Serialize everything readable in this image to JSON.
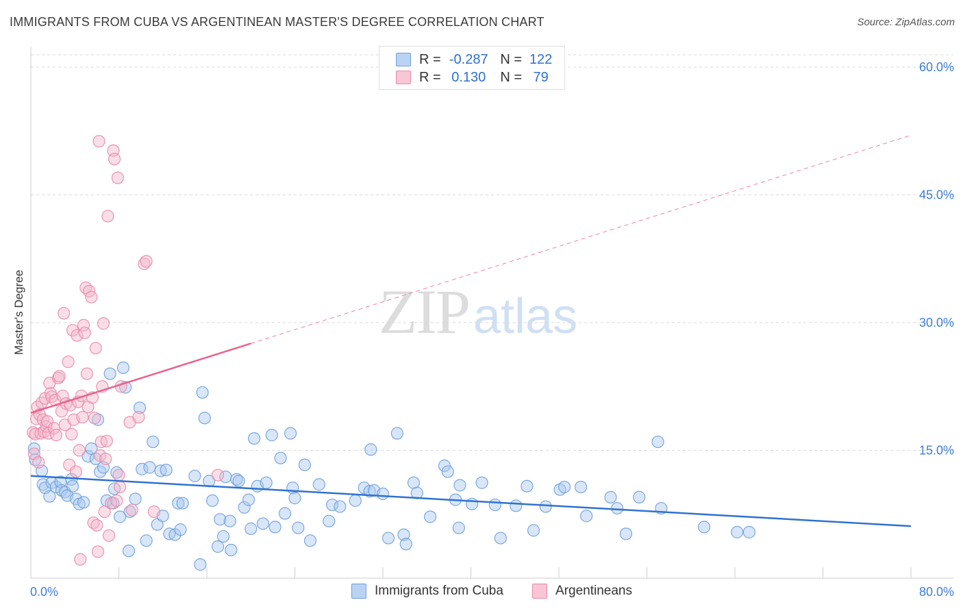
{
  "title": "IMMIGRANTS FROM CUBA VS ARGENTINEAN MASTER'S DEGREE CORRELATION CHART",
  "source": "Source: ZipAtlas.com",
  "watermark": {
    "part1": "ZIP",
    "part2": "atlas"
  },
  "legend": {
    "rows": [
      {
        "r_label": "R =",
        "r_value": "-0.287",
        "n_label": "N =",
        "n_value": "122"
      },
      {
        "r_label": "R =",
        "r_value": "0.130",
        "n_label": "N =",
        "n_value": "79"
      }
    ]
  },
  "colors": {
    "blue_fill": "#a9c8ef",
    "blue_stroke": "#6d9edc",
    "blue_line": "#2f72cf",
    "pink_fill": "#f5b6c9",
    "pink_stroke": "#e88aa8",
    "pink_line": "#e8628c",
    "axis_label": "#3d7dd6",
    "grid": "#d9d9d9"
  },
  "chart_data": {
    "type": "scatter",
    "title": "IMMIGRANTS FROM CUBA VS ARGENTINEAN MASTER'S DEGREE CORRELATION CHART",
    "xlabel": "",
    "ylabel": "Master's Degree",
    "xlim": [
      0,
      80
    ],
    "ylim": [
      0,
      62
    ],
    "x_tick_labels": [
      "0.0%",
      "80.0%"
    ],
    "y_ticks": [
      15,
      30,
      45,
      60
    ],
    "y_tick_labels": [
      "15.0%",
      "30.0%",
      "45.0%",
      "60.0%"
    ],
    "grid": "horizontal dashed",
    "legend_position": "bottom",
    "series": [
      {
        "name": "Immigrants from Cuba",
        "color": "#6d9edc",
        "r": -0.287,
        "n": 122,
        "trend": {
          "x": [
            0,
            80
          ],
          "y": [
            12.0,
            6.1
          ],
          "dashed_from_x": null
        },
        "points": [
          [
            0.3,
            15.2
          ],
          [
            0.4,
            13.9
          ],
          [
            1.0,
            12.6
          ],
          [
            1.1,
            11.0
          ],
          [
            1.3,
            10.6
          ],
          [
            1.7,
            9.6
          ],
          [
            1.9,
            11.2
          ],
          [
            2.3,
            10.7
          ],
          [
            2.7,
            11.3
          ],
          [
            2.8,
            10.3
          ],
          [
            3.1,
            10.1
          ],
          [
            3.3,
            9.7
          ],
          [
            3.7,
            11.6
          ],
          [
            3.8,
            10.8
          ],
          [
            4.1,
            9.3
          ],
          [
            4.4,
            8.7
          ],
          [
            4.8,
            8.9
          ],
          [
            5.2,
            14.3
          ],
          [
            5.5,
            15.2
          ],
          [
            5.9,
            14.0
          ],
          [
            6.1,
            18.6
          ],
          [
            6.3,
            12.5
          ],
          [
            6.6,
            13.0
          ],
          [
            6.9,
            9.1
          ],
          [
            7.2,
            24.0
          ],
          [
            7.5,
            8.8
          ],
          [
            7.6,
            10.5
          ],
          [
            7.8,
            12.4
          ],
          [
            8.1,
            7.2
          ],
          [
            8.4,
            24.7
          ],
          [
            8.6,
            22.4
          ],
          [
            8.9,
            3.2
          ],
          [
            9.0,
            7.8
          ],
          [
            9.5,
            9.3
          ],
          [
            9.9,
            20.0
          ],
          [
            10.1,
            12.8
          ],
          [
            10.5,
            4.4
          ],
          [
            10.8,
            13.0
          ],
          [
            11.1,
            16.0
          ],
          [
            11.5,
            6.3
          ],
          [
            11.8,
            12.6
          ],
          [
            12.0,
            7.3
          ],
          [
            12.3,
            12.7
          ],
          [
            12.6,
            5.2
          ],
          [
            13.1,
            5.1
          ],
          [
            13.4,
            8.8
          ],
          [
            13.6,
            5.7
          ],
          [
            13.8,
            8.8
          ],
          [
            14.9,
            12.0
          ],
          [
            15.4,
            1.6
          ],
          [
            15.6,
            21.8
          ],
          [
            15.8,
            18.8
          ],
          [
            16.2,
            11.4
          ],
          [
            16.5,
            9.1
          ],
          [
            17.0,
            3.7
          ],
          [
            17.2,
            6.9
          ],
          [
            17.5,
            4.9
          ],
          [
            17.7,
            11.9
          ],
          [
            18.1,
            6.7
          ],
          [
            18.2,
            3.3
          ],
          [
            18.7,
            11.6
          ],
          [
            18.9,
            11.4
          ],
          [
            19.4,
            8.3
          ],
          [
            19.8,
            9.2
          ],
          [
            20.0,
            5.8
          ],
          [
            20.3,
            16.4
          ],
          [
            20.6,
            10.8
          ],
          [
            21.1,
            6.4
          ],
          [
            21.4,
            11.2
          ],
          [
            21.9,
            16.8
          ],
          [
            22.2,
            6.0
          ],
          [
            22.7,
            14.1
          ],
          [
            23.1,
            7.6
          ],
          [
            23.6,
            17.0
          ],
          [
            23.8,
            10.6
          ],
          [
            24.0,
            9.4
          ],
          [
            24.3,
            5.9
          ],
          [
            24.9,
            13.3
          ],
          [
            25.4,
            4.4
          ],
          [
            26.2,
            11.0
          ],
          [
            27.1,
            6.7
          ],
          [
            27.4,
            8.6
          ],
          [
            28.1,
            8.4
          ],
          [
            29.5,
            9.1
          ],
          [
            30.3,
            10.6
          ],
          [
            30.8,
            10.2
          ],
          [
            30.9,
            15.1
          ],
          [
            31.2,
            10.3
          ],
          [
            32.0,
            9.9
          ],
          [
            32.5,
            4.7
          ],
          [
            33.3,
            17.0
          ],
          [
            33.9,
            5.1
          ],
          [
            34.1,
            4.0
          ],
          [
            34.8,
            11.2
          ],
          [
            35.1,
            10.0
          ],
          [
            36.3,
            7.2
          ],
          [
            37.6,
            13.2
          ],
          [
            37.9,
            12.5
          ],
          [
            38.6,
            9.2
          ],
          [
            38.9,
            5.9
          ],
          [
            39.0,
            10.9
          ],
          [
            40.1,
            8.7
          ],
          [
            41.0,
            11.2
          ],
          [
            42.2,
            8.6
          ],
          [
            42.7,
            4.7
          ],
          [
            44.1,
            8.5
          ],
          [
            45.1,
            10.8
          ],
          [
            45.7,
            5.6
          ],
          [
            46.8,
            8.4
          ],
          [
            48.1,
            10.4
          ],
          [
            48.5,
            10.7
          ],
          [
            50.0,
            10.7
          ],
          [
            50.5,
            7.3
          ],
          [
            52.7,
            9.5
          ],
          [
            53.3,
            8.2
          ],
          [
            54.1,
            5.2
          ],
          [
            55.3,
            9.5
          ],
          [
            57.0,
            16.0
          ],
          [
            57.3,
            8.2
          ],
          [
            61.2,
            6.0
          ],
          [
            64.2,
            5.4
          ],
          [
            65.3,
            5.4
          ]
        ]
      },
      {
        "name": "Argentineans",
        "color": "#e88aa8",
        "r": 0.13,
        "n": 79,
        "trend": {
          "x": [
            0,
            80
          ],
          "y": [
            19.4,
            52.0
          ],
          "dashed_from_x": 20
        },
        "points": [
          [
            0.2,
            17.1
          ],
          [
            0.3,
            14.6
          ],
          [
            0.4,
            16.9
          ],
          [
            0.5,
            18.7
          ],
          [
            0.6,
            20.1
          ],
          [
            0.7,
            13.6
          ],
          [
            0.8,
            19.2
          ],
          [
            0.9,
            17.0
          ],
          [
            1.0,
            20.6
          ],
          [
            1.1,
            18.6
          ],
          [
            1.2,
            17.2
          ],
          [
            1.3,
            21.1
          ],
          [
            1.4,
            17.8
          ],
          [
            1.5,
            18.4
          ],
          [
            1.6,
            17.0
          ],
          [
            1.7,
            22.9
          ],
          [
            1.8,
            21.7
          ],
          [
            1.9,
            21.3
          ],
          [
            2.1,
            17.6
          ],
          [
            2.2,
            20.9
          ],
          [
            2.3,
            16.8
          ],
          [
            2.5,
            23.5
          ],
          [
            2.6,
            23.7
          ],
          [
            2.8,
            19.6
          ],
          [
            2.9,
            21.4
          ],
          [
            3.0,
            31.1
          ],
          [
            3.1,
            18.0
          ],
          [
            3.2,
            20.5
          ],
          [
            3.4,
            25.4
          ],
          [
            3.5,
            13.3
          ],
          [
            3.6,
            20.3
          ],
          [
            3.7,
            16.9
          ],
          [
            3.8,
            29.1
          ],
          [
            3.9,
            18.6
          ],
          [
            4.1,
            12.5
          ],
          [
            4.2,
            28.5
          ],
          [
            4.3,
            20.7
          ],
          [
            4.4,
            15.0
          ],
          [
            4.5,
            2.2
          ],
          [
            4.6,
            21.4
          ],
          [
            4.7,
            18.9
          ],
          [
            4.8,
            29.7
          ],
          [
            4.9,
            28.8
          ],
          [
            5.0,
            34.1
          ],
          [
            5.1,
            24.0
          ],
          [
            5.2,
            20.1
          ],
          [
            5.3,
            33.7
          ],
          [
            5.5,
            33.0
          ],
          [
            5.6,
            21.2
          ],
          [
            5.7,
            6.5
          ],
          [
            5.8,
            18.8
          ],
          [
            5.9,
            27.0
          ],
          [
            6.0,
            6.2
          ],
          [
            6.1,
            3.1
          ],
          [
            6.2,
            51.3
          ],
          [
            6.3,
            14.4
          ],
          [
            6.4,
            16.0
          ],
          [
            6.5,
            22.5
          ],
          [
            6.6,
            29.9
          ],
          [
            6.7,
            7.8
          ],
          [
            6.8,
            14.0
          ],
          [
            6.9,
            16.1
          ],
          [
            7.0,
            42.5
          ],
          [
            7.1,
            5.0
          ],
          [
            7.3,
            8.8
          ],
          [
            7.5,
            50.2
          ],
          [
            7.6,
            49.2
          ],
          [
            7.8,
            9.1
          ],
          [
            7.9,
            47.0
          ],
          [
            8.0,
            12.1
          ],
          [
            8.1,
            10.7
          ],
          [
            8.2,
            22.5
          ],
          [
            9.0,
            18.3
          ],
          [
            9.2,
            8.0
          ],
          [
            9.8,
            18.9
          ],
          [
            10.3,
            36.9
          ],
          [
            10.5,
            37.2
          ],
          [
            11.2,
            7.8
          ],
          [
            17.0,
            12.1
          ]
        ]
      }
    ]
  }
}
